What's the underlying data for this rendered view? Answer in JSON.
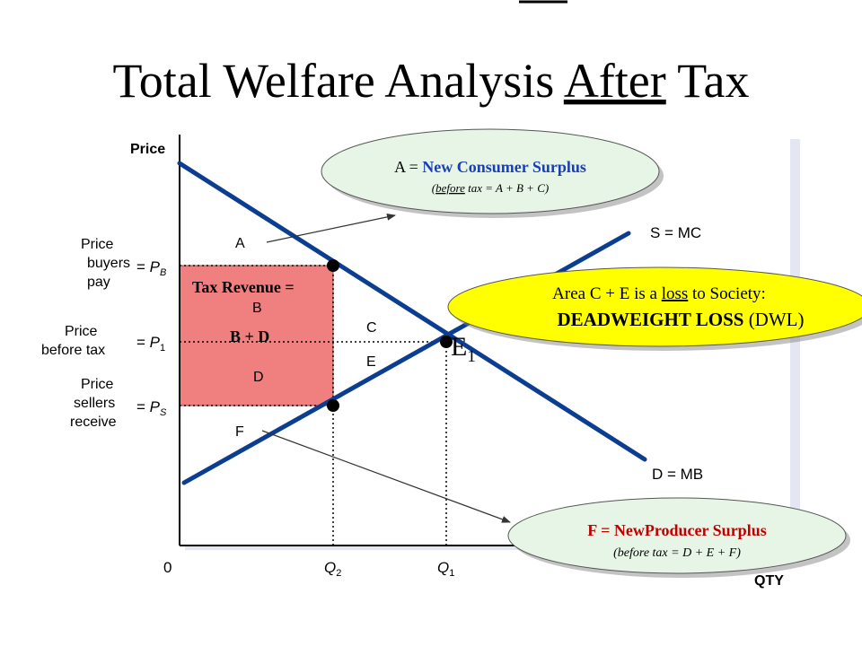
{
  "title": {
    "prefix": "Total Welfare Analysis ",
    "underlined": "After",
    "suffix": " Tax"
  },
  "axes": {
    "y_label": "Price",
    "x_label": "QTY",
    "origin": "0"
  },
  "curves": {
    "supply": "S = MC",
    "demand": "D = MB",
    "equilibrium": "E",
    "equilibrium_sub": "1"
  },
  "price_levels": [
    {
      "name": "buyers",
      "desc": [
        "Price",
        "buyers",
        "pay"
      ],
      "sym": "P",
      "sub": "B"
    },
    {
      "name": "before",
      "desc": [
        "Price",
        "before tax"
      ],
      "sym": "P",
      "sub": "1"
    },
    {
      "name": "sellers",
      "desc": [
        "Price",
        "sellers",
        "receive"
      ],
      "sym": "P",
      "sub": "S"
    }
  ],
  "quantities": [
    {
      "name": "q2",
      "sym": "Q",
      "sub": "2"
    },
    {
      "name": "q1",
      "sym": "Q",
      "sub": "1"
    }
  ],
  "regions": {
    "A": "A",
    "B": "B",
    "C": "C",
    "D": "D",
    "E": "E",
    "F": "F"
  },
  "tax_revenue": {
    "line1": "Tax Revenue =",
    "line2": "B + D"
  },
  "callouts": {
    "consumer": {
      "prefix": "A = ",
      "text": "New Consumer Surplus",
      "note_open": "(",
      "note_underlined": "before",
      "note_rest": " tax = A + B + C)"
    },
    "dwl": {
      "line1_prefix": "Area C + E is a ",
      "line1_underlined": "loss",
      "line1_suffix": " to Society:",
      "line2_bold": "DEADWEIGHT LOSS",
      "line2_rest": " (DWL)"
    },
    "producer": {
      "title": "F = NewProducer Surplus",
      "note": "(before tax = D + E + F)"
    }
  },
  "colors": {
    "curve": "#0b3d91",
    "tax_fill": "#f08080",
    "callout_green": "#e6f5e6",
    "callout_yellow": "#ffff00",
    "title_blue": "#1a3fb5",
    "producer_red": "#c00000"
  }
}
